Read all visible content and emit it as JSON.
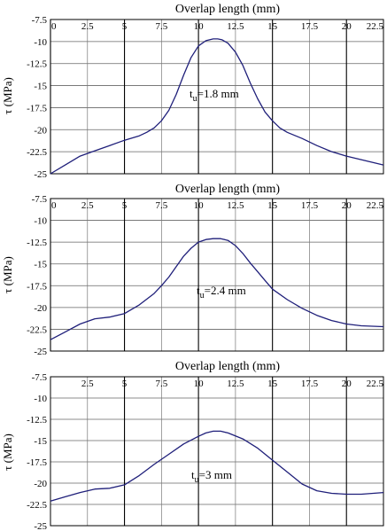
{
  "ylabel": "τ (MPa)",
  "chart_data": [
    {
      "type": "line",
      "title": "Overlap length (mm)",
      "xlabel": "Overlap length (mm)",
      "ylabel": "τ (MPa)",
      "xlim": [
        0,
        22.5
      ],
      "ylim": [
        -25,
        -7.5
      ],
      "x_ticks": [
        "0",
        "2.5",
        "5",
        "7.5",
        "10",
        "12.5",
        "15",
        "17.5",
        "20",
        "22.5"
      ],
      "y_ticks": [
        "-7.5",
        "-10",
        "-12.5",
        "-15",
        "-17.5",
        "-20",
        "-22.5",
        "-25"
      ],
      "grid": true,
      "annotation": {
        "base": "t",
        "sub": "u",
        "rest": "=1.8 mm"
      },
      "series": [
        {
          "color": "#1f1f7a",
          "x": [
            0,
            1,
            2,
            3,
            4,
            5,
            6,
            6.5,
            7,
            7.5,
            8,
            8.5,
            9,
            9.5,
            10,
            10.5,
            11,
            11.3,
            11.6,
            12,
            12.5,
            13,
            13.5,
            14,
            14.5,
            15,
            15.5,
            16,
            17,
            18,
            19,
            20,
            21,
            22.5
          ],
          "y": [
            -25,
            -24,
            -23,
            -22.4,
            -21.8,
            -21.2,
            -20.7,
            -20.3,
            -19.8,
            -19,
            -17.8,
            -16,
            -13.8,
            -11.8,
            -10.5,
            -9.9,
            -9.7,
            -9.7,
            -9.8,
            -10.2,
            -11.2,
            -12.7,
            -14.7,
            -16.5,
            -18,
            -19,
            -19.8,
            -20.3,
            -21,
            -21.8,
            -22.5,
            -23,
            -23.4,
            -24
          ]
        }
      ]
    },
    {
      "type": "line",
      "title": "Overlap length (mm)",
      "xlabel": "Overlap length (mm)",
      "ylabel": "τ (MPa)",
      "xlim": [
        0,
        22.5
      ],
      "ylim": [
        -25,
        -7.5
      ],
      "x_ticks": [
        "0",
        "2.5",
        "5",
        "7.5",
        "10",
        "12.5",
        "15",
        "17.5",
        "20",
        "22.5"
      ],
      "y_ticks": [
        "-7.5",
        "-10",
        "-12.5",
        "-15",
        "-17.5",
        "-20",
        "-22.5",
        "-25"
      ],
      "grid": true,
      "annotation": {
        "base": "t",
        "sub": "u",
        "rest": "=2.4 mm"
      },
      "series": [
        {
          "color": "#1f1f7a",
          "x": [
            0,
            1,
            2,
            3,
            4,
            5,
            6,
            7,
            7.5,
            8,
            8.5,
            9,
            9.5,
            10,
            10.5,
            11,
            11.5,
            12,
            12.5,
            13,
            13.5,
            14,
            14.5,
            15,
            16,
            17,
            18,
            19,
            20,
            21,
            22.5
          ],
          "y": [
            -23.7,
            -22.8,
            -21.9,
            -21.3,
            -21.1,
            -20.7,
            -19.7,
            -18.4,
            -17.5,
            -16.5,
            -15.3,
            -14.1,
            -13.2,
            -12.5,
            -12.2,
            -12.1,
            -12.1,
            -12.3,
            -12.9,
            -13.8,
            -14.9,
            -15.9,
            -16.9,
            -17.9,
            -19.1,
            -20.1,
            -20.9,
            -21.5,
            -21.9,
            -22.1,
            -22.2
          ]
        }
      ]
    },
    {
      "type": "line",
      "title": "Overlap length (mm)",
      "xlabel": "Overlap length (mm)",
      "ylabel": "τ (MPa)",
      "xlim": [
        0,
        22.5
      ],
      "ylim": [
        -25,
        -7.5
      ],
      "x_ticks": [
        "2.5",
        "5",
        "7.5",
        "10",
        "12.5",
        "15",
        "17.5",
        "20",
        "22.5"
      ],
      "y_ticks": [
        "-7.5",
        "-10",
        "-12.5",
        "-15",
        "-17.5",
        "-20",
        "-22.5",
        "-25"
      ],
      "grid": true,
      "annotation": {
        "base": "t",
        "sub": "u",
        "rest": "=3 mm"
      },
      "series": [
        {
          "color": "#1f1f7a",
          "x": [
            0,
            1,
            2,
            3,
            4,
            5,
            6,
            7,
            8,
            9,
            10,
            10.5,
            11,
            11.5,
            12,
            13,
            14,
            15,
            16,
            17,
            18,
            19,
            20,
            21,
            22.5
          ],
          "y": [
            -22.1,
            -21.6,
            -21.1,
            -20.7,
            -20.6,
            -20.2,
            -19.1,
            -17.8,
            -16.6,
            -15.4,
            -14.5,
            -14.1,
            -13.9,
            -13.9,
            -14.1,
            -14.8,
            -15.9,
            -17.3,
            -18.7,
            -20.1,
            -20.9,
            -21.2,
            -21.3,
            -21.3,
            -21.1
          ]
        }
      ]
    }
  ]
}
